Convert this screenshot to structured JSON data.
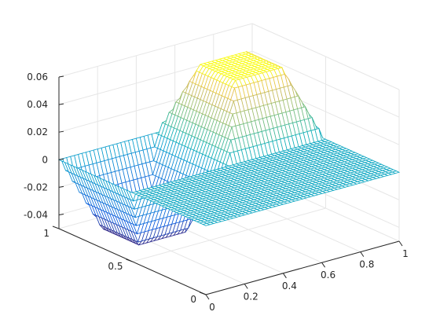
{
  "chart_data": {
    "type": "surface",
    "title": "",
    "xlabel": "",
    "ylabel": "",
    "zlabel": "",
    "xlim": [
      0,
      1
    ],
    "ylim": [
      0,
      1
    ],
    "zlim": [
      -0.05,
      0.06
    ],
    "grid": true,
    "colormap": "parula",
    "x_ticks": [
      {
        "value": 0,
        "label": "0"
      },
      {
        "value": 0.2,
        "label": "0.2"
      },
      {
        "value": 0.4,
        "label": "0.4"
      },
      {
        "value": 0.6,
        "label": "0.6"
      },
      {
        "value": 0.8,
        "label": "0.8"
      },
      {
        "value": 1,
        "label": "1"
      }
    ],
    "y_ticks": [
      {
        "value": 0,
        "label": "0"
      },
      {
        "value": 0.5,
        "label": "0.5"
      },
      {
        "value": 1,
        "label": "1"
      }
    ],
    "z_ticks": [
      {
        "value": -0.04,
        "label": "-0.04"
      },
      {
        "value": -0.02,
        "label": "-0.02"
      },
      {
        "value": 0,
        "label": "0"
      },
      {
        "value": 0.02,
        "label": "0.02"
      },
      {
        "value": 0.04,
        "label": "0.04"
      },
      {
        "value": 0.06,
        "label": "0.06"
      }
    ],
    "surface": {
      "grid_size": 51,
      "background_value": 0,
      "features": [
        {
          "kind": "plateau",
          "x_range": [
            0.5,
            1.0
          ],
          "y_range": [
            0.5,
            1.0
          ],
          "top_x_range": [
            0.63,
            0.88
          ],
          "top_y_range": [
            0.63,
            0.88
          ],
          "height": 0.05
        },
        {
          "kind": "depression",
          "x_range": [
            0.0,
            0.5
          ],
          "y_range": [
            0.5,
            1.0
          ],
          "bottom_x_range": [
            0.13,
            0.38
          ],
          "bottom_y_range": [
            0.63,
            0.88
          ],
          "depth": -0.05
        }
      ]
    }
  }
}
